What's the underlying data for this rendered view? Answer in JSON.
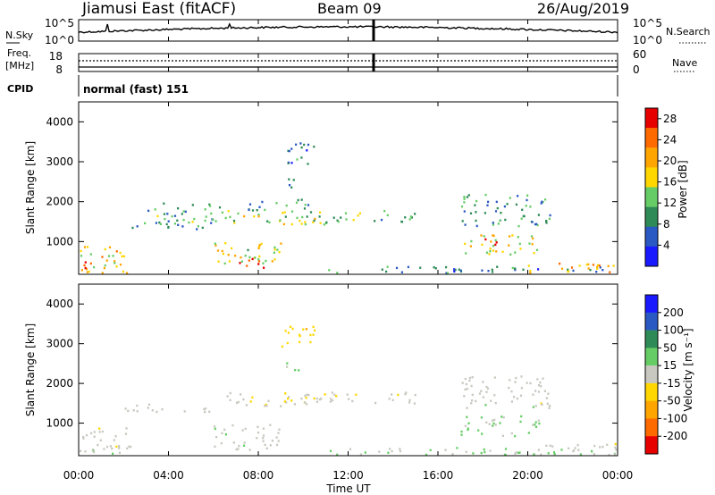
{
  "header": {
    "station": "Jiamusi East (fitACF)",
    "beam": "Beam 09",
    "date": "26/Aug/2019"
  },
  "top_panels": {
    "nsky_label": "N.Sky",
    "nsky_ticks": [
      "10^5",
      "10^0"
    ],
    "nsearch_label": "N.Search",
    "nsearch_ticks": [
      "10^5",
      "10^0"
    ],
    "freq_label": "Freq.",
    "freq_unit": "[MHz]",
    "freq_ticks": [
      "18",
      "8"
    ],
    "nave_label": "Nave",
    "nave_ticks": [
      "60",
      "0"
    ],
    "cpid_label": "CPID",
    "cpid_value": "normal (fast) 151"
  },
  "x_axis": {
    "label": "Time UT",
    "ticks": [
      "00:00",
      "04:00",
      "08:00",
      "12:00",
      "16:00",
      "20:00",
      "00:00"
    ]
  },
  "chart_data": [
    {
      "type": "heatmap",
      "name": "power-panel",
      "xlabel": "Time UT",
      "ylabel": "Slant Range [km]",
      "xlim": [
        0,
        24
      ],
      "ylim": [
        180,
        4500
      ],
      "y_ticks": [
        "1000",
        "2000",
        "3000",
        "4000"
      ],
      "colorbar": {
        "label": "Power [dB]",
        "ticks": [
          "4",
          "8",
          "12",
          "16",
          "20",
          "24",
          "28"
        ],
        "range": [
          0,
          30
        ],
        "colors": [
          "#1a1aff",
          "#2b59c3",
          "#2e8b57",
          "#66cd66",
          "#ffd700",
          "#ffa500",
          "#ff6a00",
          "#e60000"
        ]
      },
      "echo_regions": [
        {
          "t0": 0.0,
          "t1": 2.3,
          "r0": 200,
          "r1": 900,
          "level": 18
        },
        {
          "t0": 0.2,
          "t1": 1.0,
          "r0": 350,
          "r1": 650,
          "level": 26
        },
        {
          "t0": 2.0,
          "t1": 6.0,
          "r0": 1300,
          "r1": 1500,
          "level": 9
        },
        {
          "t0": 3.0,
          "t1": 6.5,
          "r0": 1500,
          "r1": 2000,
          "level": 11
        },
        {
          "t0": 6.0,
          "t1": 9.0,
          "r0": 350,
          "r1": 1000,
          "level": 16
        },
        {
          "t0": 7.0,
          "t1": 8.3,
          "r0": 300,
          "r1": 600,
          "level": 27
        },
        {
          "t0": 6.5,
          "t1": 11.5,
          "r0": 1450,
          "r1": 1800,
          "level": 15
        },
        {
          "t0": 7.5,
          "t1": 10.5,
          "r0": 1800,
          "r1": 2100,
          "level": 10
        },
        {
          "t0": 9.0,
          "t1": 9.8,
          "r0": 2300,
          "r1": 2600,
          "level": 12
        },
        {
          "t0": 9.0,
          "t1": 10.5,
          "r0": 2900,
          "r1": 3500,
          "level": 7
        },
        {
          "t0": 10.0,
          "t1": 12.5,
          "r0": 1500,
          "r1": 1800,
          "level": 12
        },
        {
          "t0": 11.0,
          "t1": 24.0,
          "r0": 200,
          "r1": 400,
          "level": 8
        },
        {
          "t0": 13.0,
          "t1": 15.0,
          "r0": 1500,
          "r1": 1800,
          "level": 10
        },
        {
          "t0": 17.0,
          "t1": 20.5,
          "r0": 700,
          "r1": 1200,
          "level": 17
        },
        {
          "t0": 18.0,
          "t1": 19.0,
          "r0": 900,
          "r1": 1100,
          "level": 26
        },
        {
          "t0": 17.0,
          "t1": 21.0,
          "r0": 1400,
          "r1": 2200,
          "level": 10
        },
        {
          "t0": 20.0,
          "t1": 24.0,
          "r0": 200,
          "r1": 500,
          "level": 20
        }
      ]
    },
    {
      "type": "heatmap",
      "name": "velocity-panel",
      "xlabel": "Time UT",
      "ylabel": "Slant Range [km]",
      "xlim": [
        0,
        24
      ],
      "ylim": [
        180,
        4500
      ],
      "y_ticks": [
        "1000",
        "2000",
        "3000",
        "4000"
      ],
      "colorbar": {
        "label": "Velocity [m s⁻¹]",
        "ticks": [
          "200",
          "100",
          "50",
          "15",
          "-15",
          "-50",
          "-100",
          "-200"
        ],
        "range": [
          -250,
          250
        ],
        "colors": [
          "#e60000",
          "#ff6a00",
          "#ffa500",
          "#ffd700",
          "#c8c8c0",
          "#66cd66",
          "#2e8b57",
          "#2b59c3",
          "#1a1aff"
        ]
      },
      "echo_regions": [
        {
          "t0": 0.0,
          "t1": 2.3,
          "r0": 200,
          "r1": 900,
          "level": 0
        },
        {
          "t0": 0.0,
          "t1": 2.0,
          "r0": 200,
          "r1": 330,
          "level": 40
        },
        {
          "t0": 2.0,
          "t1": 6.0,
          "r0": 1300,
          "r1": 1500,
          "level": 0
        },
        {
          "t0": 6.0,
          "t1": 9.0,
          "r0": 350,
          "r1": 1000,
          "level": 0
        },
        {
          "t0": 6.5,
          "t1": 11.5,
          "r0": 1450,
          "r1": 1800,
          "level": -20
        },
        {
          "t0": 9.0,
          "t1": 9.8,
          "r0": 2300,
          "r1": 2600,
          "level": 40
        },
        {
          "t0": 9.0,
          "t1": 10.5,
          "r0": 2900,
          "r1": 3500,
          "level": -60
        },
        {
          "t0": 10.0,
          "t1": 12.5,
          "r0": 1500,
          "r1": 1800,
          "level": 0
        },
        {
          "t0": 11.0,
          "t1": 24.0,
          "r0": 200,
          "r1": 400,
          "level": 30
        },
        {
          "t0": 13.0,
          "t1": 15.0,
          "r0": 1500,
          "r1": 1800,
          "level": 0
        },
        {
          "t0": 17.0,
          "t1": 20.5,
          "r0": 700,
          "r1": 1200,
          "level": 40
        },
        {
          "t0": 17.0,
          "t1": 21.0,
          "r0": 1400,
          "r1": 2200,
          "level": 0
        },
        {
          "t0": 20.0,
          "t1": 24.0,
          "r0": 200,
          "r1": 500,
          "level": 0
        }
      ]
    }
  ]
}
